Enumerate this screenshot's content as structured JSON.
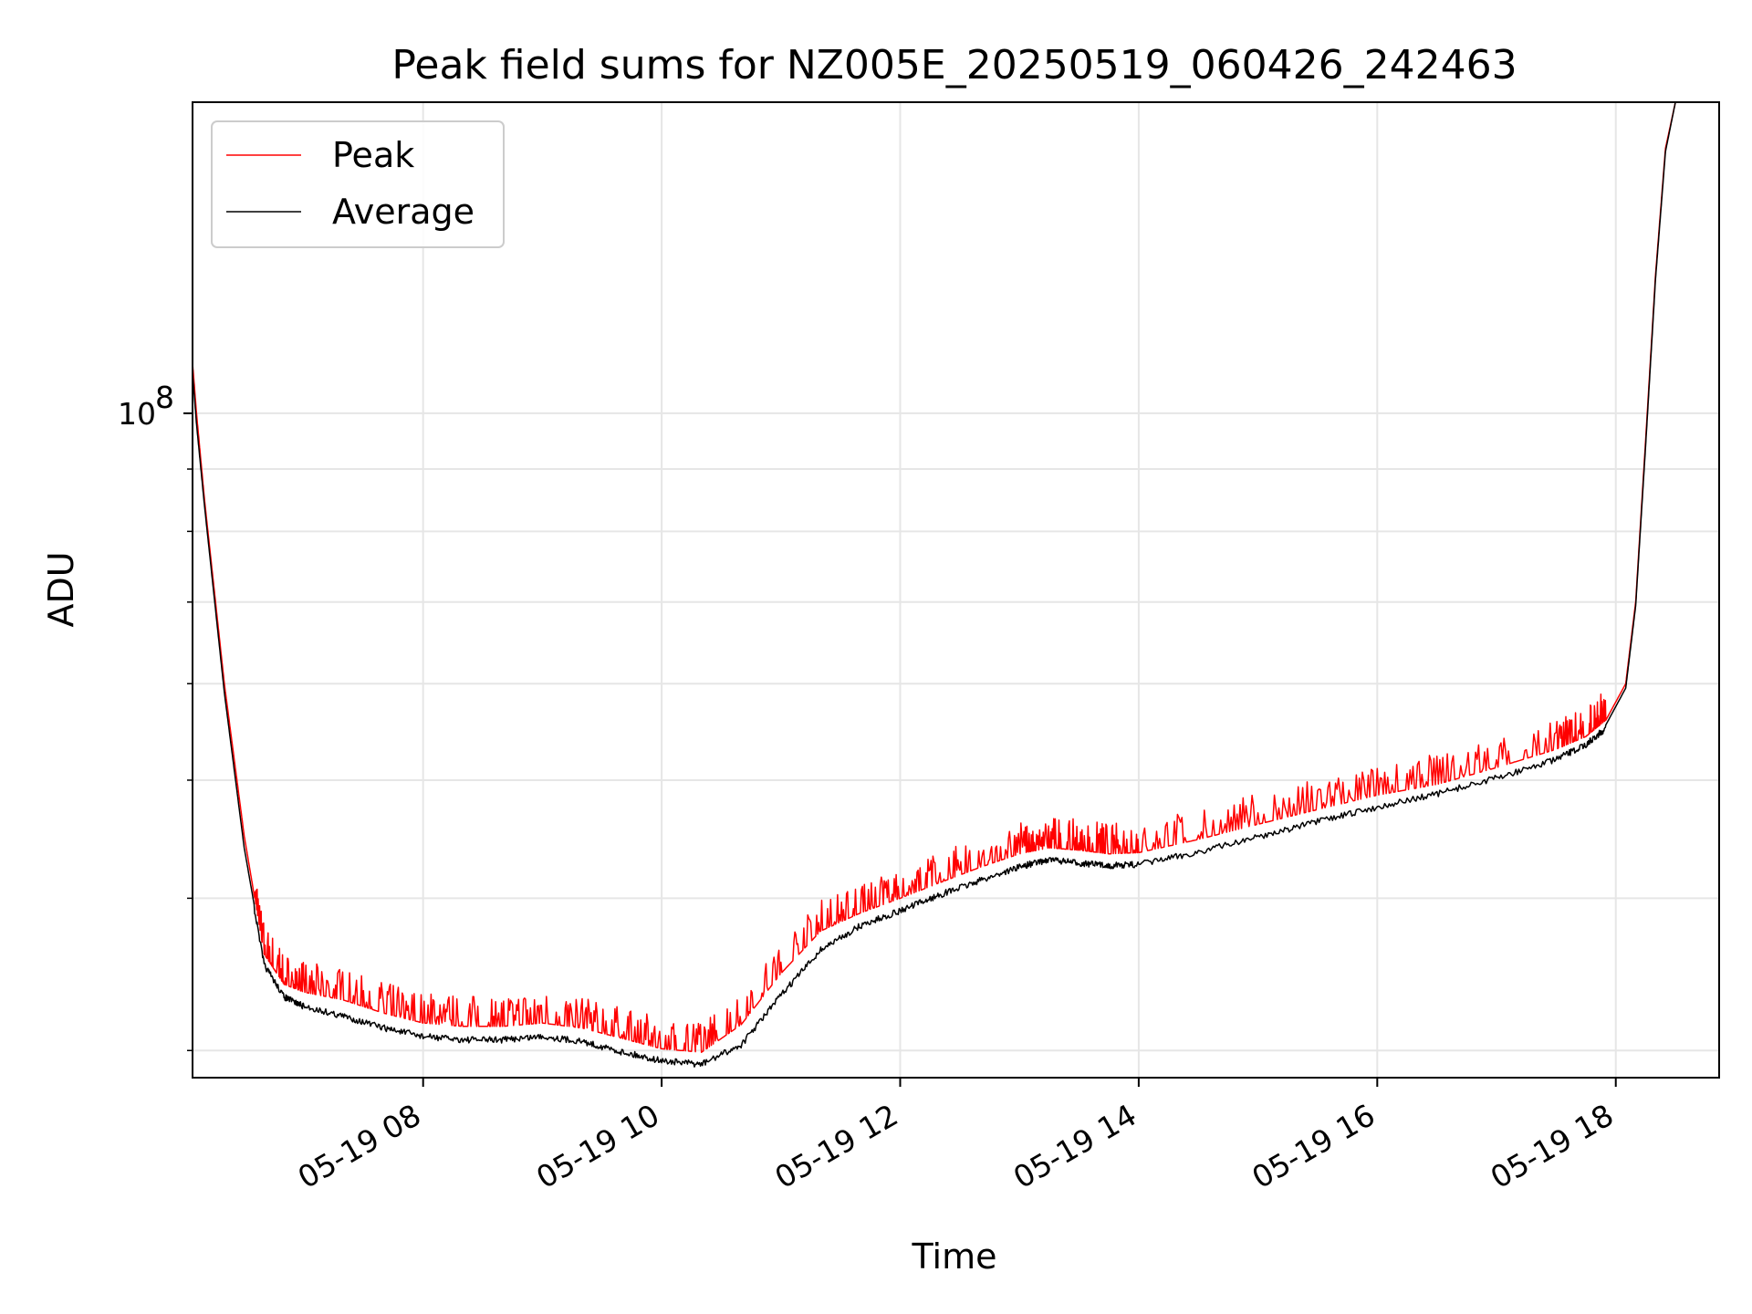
{
  "chart_data": {
    "type": "line",
    "title": "Peak field sums for NZ005E_20250519_060426_242463",
    "xlabel": "Time",
    "ylabel": "ADU",
    "y_scale": "log",
    "ylim": [
      28500000,
      180000000
    ],
    "xlim": [
      "2025-05-19 06:04",
      "2025-05-19 18:52"
    ],
    "x_ticks": [
      {
        "x": "2025-05-19 08:00",
        "label": "05-19 08"
      },
      {
        "x": "2025-05-19 10:00",
        "label": "05-19 10"
      },
      {
        "x": "2025-05-19 12:00",
        "label": "05-19 12"
      },
      {
        "x": "2025-05-19 14:00",
        "label": "05-19 14"
      },
      {
        "x": "2025-05-19 16:00",
        "label": "05-19 16"
      },
      {
        "x": "2025-05-19 18:00",
        "label": "05-19 18"
      }
    ],
    "y_major_ticks": [
      {
        "y": 100000000,
        "base": "10",
        "exponent": "8"
      }
    ],
    "y_minor_ticks": [
      30000000,
      40000000,
      50000000,
      60000000,
      70000000,
      80000000,
      90000000,
      200000000
    ],
    "grid": true,
    "legend_position": "upper-left",
    "series": [
      {
        "name": "Peak",
        "color": "#ff0000",
        "x": [
          "2025-05-19 06:04",
          "2025-05-19 06:06",
          "2025-05-19 06:10",
          "2025-05-19 06:20",
          "2025-05-19 06:30",
          "2025-05-19 06:40",
          "2025-05-19 06:50",
          "2025-05-19 07:00",
          "2025-05-19 07:20",
          "2025-05-19 07:40",
          "2025-05-19 08:00",
          "2025-05-19 08:20",
          "2025-05-19 08:40",
          "2025-05-19 09:00",
          "2025-05-19 09:20",
          "2025-05-19 09:40",
          "2025-05-19 10:00",
          "2025-05-19 10:20",
          "2025-05-19 10:40",
          "2025-05-19 11:00",
          "2025-05-19 11:20",
          "2025-05-19 11:40",
          "2025-05-19 12:00",
          "2025-05-19 12:20",
          "2025-05-19 12:40",
          "2025-05-19 13:00",
          "2025-05-19 13:15",
          "2025-05-19 13:30",
          "2025-05-19 13:45",
          "2025-05-19 14:00",
          "2025-05-19 14:30",
          "2025-05-19 15:00",
          "2025-05-19 15:30",
          "2025-05-19 16:00",
          "2025-05-19 16:30",
          "2025-05-19 17:00",
          "2025-05-19 17:30",
          "2025-05-19 17:45",
          "2025-05-19 17:55",
          "2025-05-19 18:05",
          "2025-05-19 18:10",
          "2025-05-19 18:15",
          "2025-05-19 18:20",
          "2025-05-19 18:25",
          "2025-05-19 18:30",
          "2025-05-19 18:40"
        ],
        "values": [
          110000000,
          100000000,
          85000000,
          60000000,
          45000000,
          36000000,
          34000000,
          33500000,
          33000000,
          32200000,
          31600000,
          31400000,
          31400000,
          31600000,
          31300000,
          30700000,
          30100000,
          29900000,
          31500000,
          34700000,
          37600000,
          38900000,
          40000000,
          41200000,
          42400000,
          43500000,
          44000000,
          43800000,
          43500000,
          43600000,
          44700000,
          46000000,
          47300000,
          48600000,
          49600000,
          51200000,
          53000000,
          54300000,
          56000000,
          60000000,
          70000000,
          95000000,
          130000000,
          165000000,
          180000000,
          180000000
        ]
      },
      {
        "name": "Average",
        "color": "#000000",
        "x": [
          "2025-05-19 06:04",
          "2025-05-19 06:06",
          "2025-05-19 06:10",
          "2025-05-19 06:20",
          "2025-05-19 06:30",
          "2025-05-19 06:40",
          "2025-05-19 06:50",
          "2025-05-19 07:00",
          "2025-05-19 07:20",
          "2025-05-19 07:40",
          "2025-05-19 08:00",
          "2025-05-19 08:20",
          "2025-05-19 08:40",
          "2025-05-19 09:00",
          "2025-05-19 09:20",
          "2025-05-19 09:40",
          "2025-05-19 10:00",
          "2025-05-19 10:20",
          "2025-05-19 10:40",
          "2025-05-19 11:00",
          "2025-05-19 11:20",
          "2025-05-19 11:40",
          "2025-05-19 12:00",
          "2025-05-19 12:20",
          "2025-05-19 12:40",
          "2025-05-19 13:00",
          "2025-05-19 13:15",
          "2025-05-19 13:30",
          "2025-05-19 13:45",
          "2025-05-19 14:00",
          "2025-05-19 14:30",
          "2025-05-19 15:00",
          "2025-05-19 15:30",
          "2025-05-19 16:00",
          "2025-05-19 16:30",
          "2025-05-19 17:00",
          "2025-05-19 17:30",
          "2025-05-19 17:45",
          "2025-05-19 17:55",
          "2025-05-19 18:05",
          "2025-05-19 18:10",
          "2025-05-19 18:15",
          "2025-05-19 18:20",
          "2025-05-19 18:25",
          "2025-05-19 18:30",
          "2025-05-19 18:40"
        ],
        "values": [
          108000000,
          98000000,
          84000000,
          59000000,
          44000000,
          35500000,
          33400000,
          32800000,
          32200000,
          31500000,
          31000000,
          30800000,
          30800000,
          31000000,
          30700000,
          30100000,
          29600000,
          29400000,
          30500000,
          33500000,
          36500000,
          38200000,
          39300000,
          40500000,
          41600000,
          42700000,
          43300000,
          43000000,
          42800000,
          42900000,
          43900000,
          45200000,
          46500000,
          47800000,
          49000000,
          50500000,
          52300000,
          53800000,
          55500000,
          59500000,
          69500000,
          94000000,
          129000000,
          164000000,
          180000000,
          180000000
        ]
      }
    ]
  }
}
